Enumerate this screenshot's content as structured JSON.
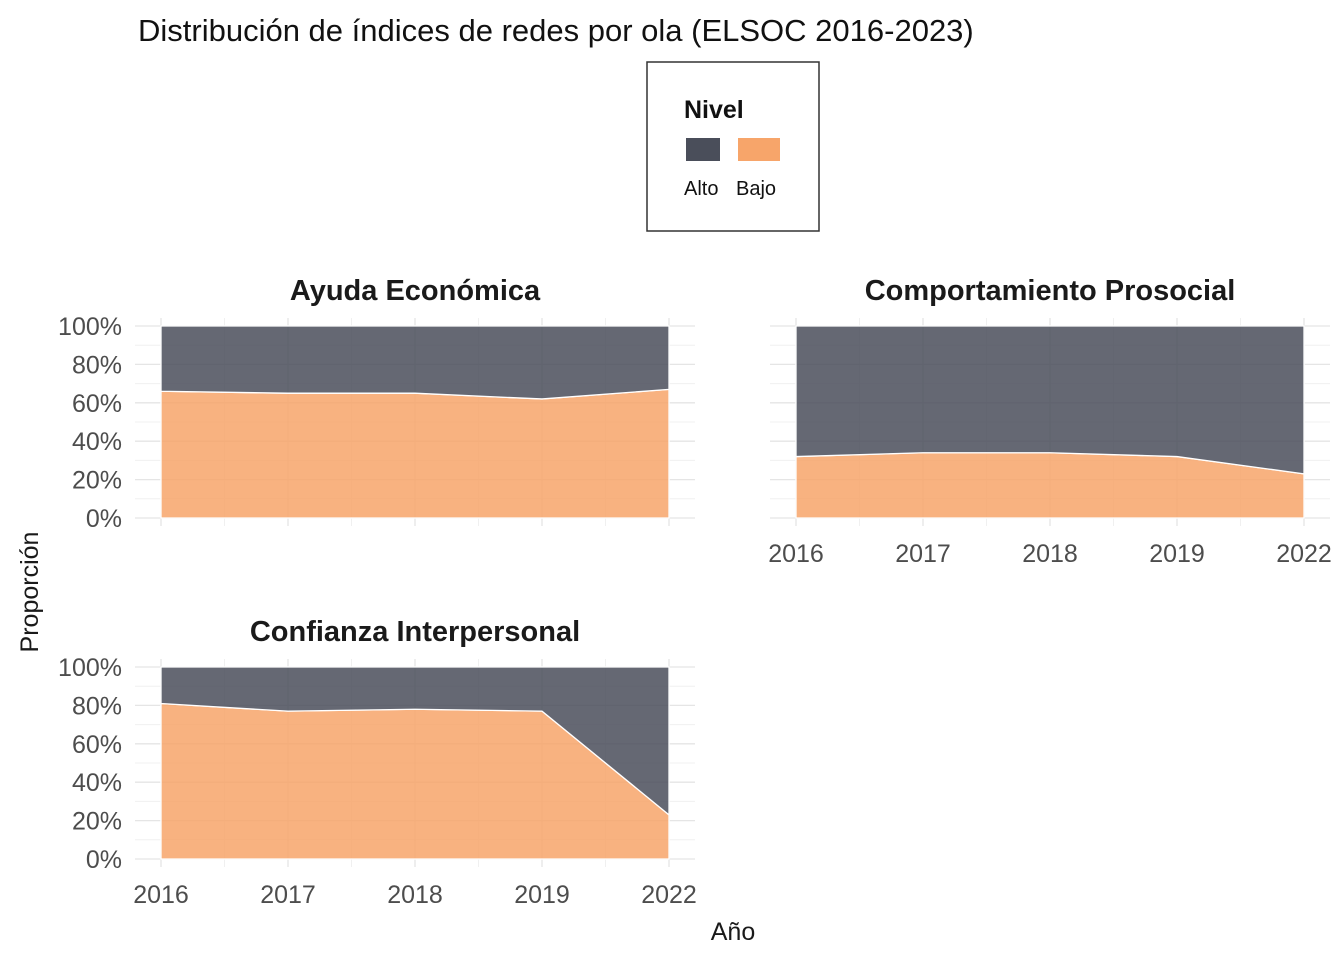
{
  "title": "Distribución de índices de redes por ola (ELSOC 2016-2023)",
  "legend": {
    "title": "Nivel",
    "items": [
      {
        "label": "Alto",
        "color": "#4a4e5a"
      },
      {
        "label": "Bajo",
        "color": "#f7a56a"
      }
    ]
  },
  "axes": {
    "xlabel": "Año",
    "ylabel": "Proporción"
  },
  "chart_data": {
    "type": "area",
    "stacked": true,
    "categories": [
      "2016",
      "2017",
      "2018",
      "2019",
      "2022"
    ],
    "ylim": [
      0,
      1
    ],
    "yticks": [
      "0%",
      "20%",
      "40%",
      "60%",
      "80%",
      "100%"
    ],
    "ytick_values": [
      0,
      0.2,
      0.4,
      0.6,
      0.8,
      1.0
    ],
    "grid": true,
    "legend_position": "top",
    "colors": {
      "Alto": "#4a4e5a",
      "Bajo": "#f7a56a"
    },
    "panels": [
      {
        "title": "Ayuda Económica",
        "series": [
          {
            "name": "Bajo",
            "values": [
              0.66,
              0.65,
              0.65,
              0.62,
              0.67
            ]
          },
          {
            "name": "Alto",
            "values": [
              0.34,
              0.35,
              0.35,
              0.38,
              0.33
            ]
          }
        ]
      },
      {
        "title": "Comportamiento Prosocial",
        "series": [
          {
            "name": "Bajo",
            "values": [
              0.32,
              0.34,
              0.34,
              0.32,
              0.23
            ]
          },
          {
            "name": "Alto",
            "values": [
              0.68,
              0.66,
              0.66,
              0.68,
              0.77
            ]
          }
        ]
      },
      {
        "title": "Confianza Interpersonal",
        "series": [
          {
            "name": "Bajo",
            "values": [
              0.81,
              0.77,
              0.78,
              0.77,
              0.23
            ]
          },
          {
            "name": "Alto",
            "values": [
              0.19,
              0.23,
              0.22,
              0.23,
              0.77
            ]
          }
        ]
      }
    ]
  }
}
